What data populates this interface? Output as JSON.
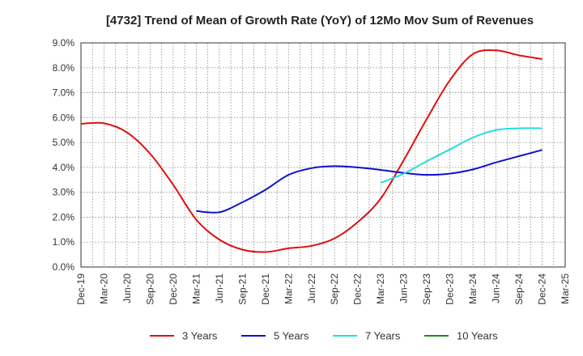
{
  "chart_data": {
    "type": "line",
    "title": "[4732]  Trend of Mean of Growth Rate (YoY) of 12Mo Mov Sum of Revenues",
    "xlabel": "",
    "ylabel": "",
    "x_labels": [
      "Dec-19",
      "Mar-20",
      "Jun-20",
      "Sep-20",
      "Dec-20",
      "Mar-21",
      "Jun-21",
      "Sep-21",
      "Dec-21",
      "Mar-22",
      "Jun-22",
      "Sep-22",
      "Dec-22",
      "Mar-23",
      "Jun-23",
      "Sep-23",
      "Dec-23",
      "Mar-24",
      "Jun-24",
      "Sep-24",
      "Dec-24",
      "Mar-25"
    ],
    "y_labels": [
      "0.0%",
      "1.0%",
      "2.0%",
      "3.0%",
      "4.0%",
      "5.0%",
      "6.0%",
      "7.0%",
      "8.0%",
      "9.0%"
    ],
    "ylim": [
      0,
      9
    ],
    "grid": true,
    "legend_position": "bottom",
    "series": [
      {
        "name": "3 Years",
        "color": "#dd1111",
        "points": [
          [
            0,
            5.75
          ],
          [
            1,
            5.77
          ],
          [
            2,
            5.4
          ],
          [
            3,
            4.55
          ],
          [
            4,
            3.3
          ],
          [
            5,
            1.9
          ],
          [
            6,
            1.1
          ],
          [
            7,
            0.7
          ],
          [
            8,
            0.6
          ],
          [
            9,
            0.75
          ],
          [
            10,
            0.85
          ],
          [
            11,
            1.15
          ],
          [
            12,
            1.8
          ],
          [
            13,
            2.75
          ],
          [
            14,
            4.3
          ],
          [
            15,
            5.95
          ],
          [
            16,
            7.5
          ],
          [
            17,
            8.55
          ],
          [
            18,
            8.7
          ],
          [
            19,
            8.5
          ],
          [
            20,
            8.35
          ]
        ]
      },
      {
        "name": "5 Years",
        "color": "#1010cc",
        "points": [
          [
            5,
            2.25
          ],
          [
            6,
            2.2
          ],
          [
            7,
            2.6
          ],
          [
            8,
            3.1
          ],
          [
            9,
            3.7
          ],
          [
            10,
            3.97
          ],
          [
            11,
            4.05
          ],
          [
            12,
            4.0
          ],
          [
            13,
            3.9
          ],
          [
            14,
            3.78
          ],
          [
            15,
            3.7
          ],
          [
            16,
            3.75
          ],
          [
            17,
            3.92
          ],
          [
            18,
            4.2
          ],
          [
            19,
            4.45
          ],
          [
            20,
            4.7
          ]
        ]
      },
      {
        "name": "7 Years",
        "color": "#22dddd",
        "points": [
          [
            13,
            3.38
          ],
          [
            14,
            3.75
          ],
          [
            15,
            4.25
          ],
          [
            16,
            4.72
          ],
          [
            17,
            5.2
          ],
          [
            18,
            5.5
          ],
          [
            19,
            5.57
          ],
          [
            20,
            5.57
          ]
        ]
      },
      {
        "name": "10 Years",
        "color": "#228822",
        "points": []
      }
    ]
  }
}
